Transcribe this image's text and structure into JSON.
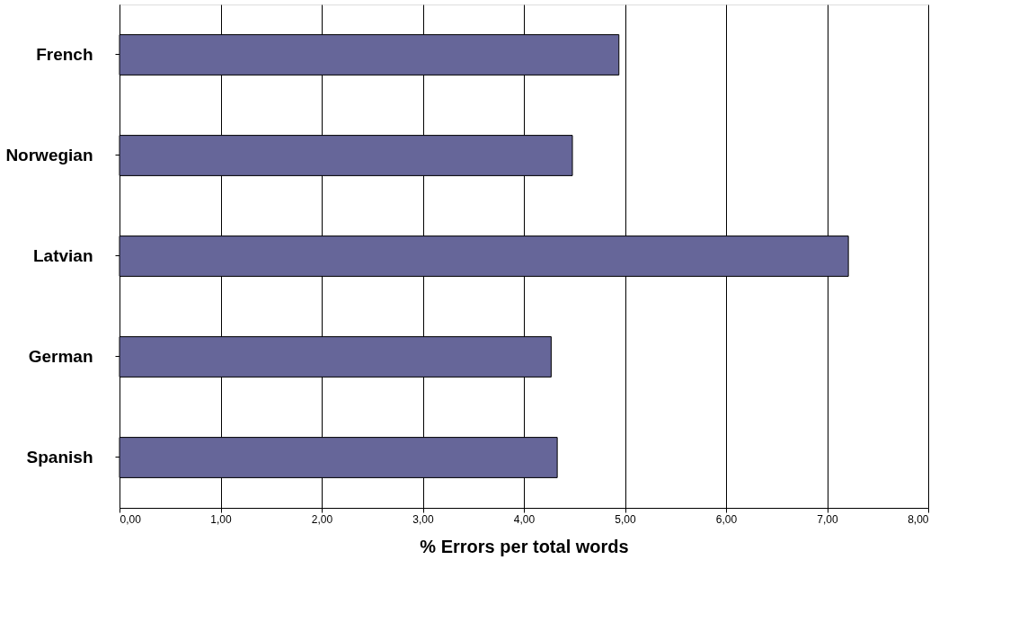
{
  "chart_data": {
    "type": "bar",
    "orientation": "horizontal",
    "xlabel": "% Errors per total words",
    "categories": [
      "French",
      "Norwegian",
      "Latvian",
      "German",
      "Spanish"
    ],
    "values": [
      4.94,
      4.48,
      7.21,
      4.27,
      4.33
    ],
    "color": "#666699",
    "xlim": [
      0,
      8
    ],
    "xticks": [
      {
        "value": 0,
        "label": "0,00"
      },
      {
        "value": 1,
        "label": "1,00"
      },
      {
        "value": 2,
        "label": "2,00"
      },
      {
        "value": 3,
        "label": "3,00"
      },
      {
        "value": 4,
        "label": "4,00"
      },
      {
        "value": 5,
        "label": "5,00"
      },
      {
        "value": 6,
        "label": "6,00"
      },
      {
        "value": 7,
        "label": "7,00"
      },
      {
        "value": 8,
        "label": "8,00"
      }
    ],
    "grid": "x"
  }
}
